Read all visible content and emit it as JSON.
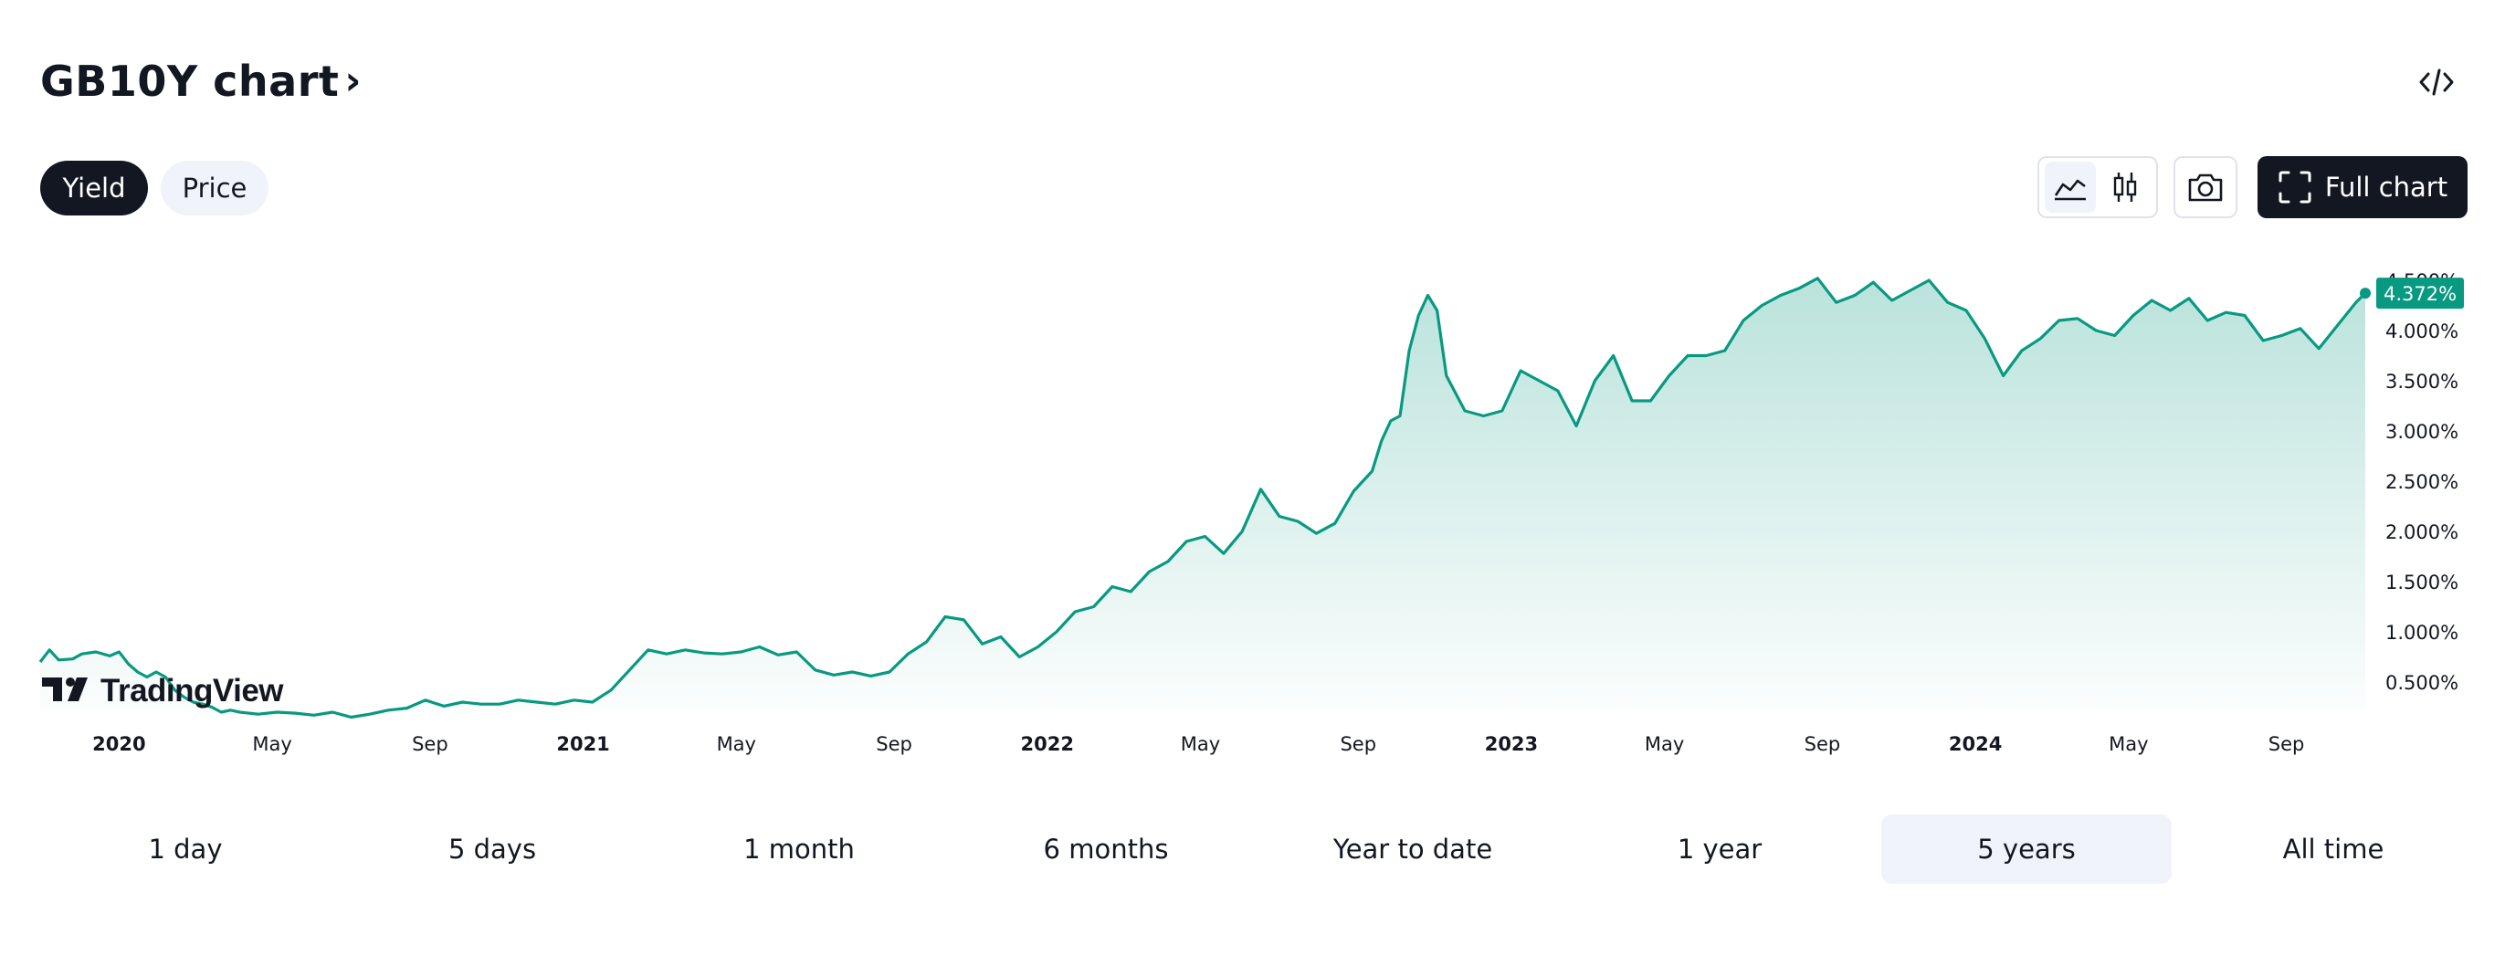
{
  "header": {
    "title": "GB10Y chart",
    "chevron": "›"
  },
  "tabs": {
    "yield_label": "Yield",
    "price_label": "Price",
    "active": "Yield"
  },
  "toolbar": {
    "full_chart_label": "Full chart",
    "chart_style_active": "area",
    "icons": [
      "embed-code-icon",
      "area-chart-icon",
      "candlestick-icon",
      "camera-icon",
      "fullscreen-icon"
    ]
  },
  "ranges": [
    "1 day",
    "5 days",
    "1 month",
    "6 months",
    "Year to date",
    "1 year",
    "5 years",
    "All time"
  ],
  "active_range": "5 years",
  "brand": {
    "name": "TradingView",
    "logo_text": "17"
  },
  "colors": {
    "line": "#089981",
    "badge": "#089981",
    "dark": "#131722",
    "muted_bg": "#f0f3fa"
  },
  "chart_data": {
    "type": "area",
    "y_unit": "%",
    "ylim": [
      0.0,
      4.75
    ],
    "y_ticks": [
      "0.500%",
      "1.000%",
      "1.500%",
      "2.000%",
      "2.500%",
      "3.000%",
      "3.500%",
      "4.000%",
      "4.500%"
    ],
    "y_tick_values": [
      0.5,
      1.0,
      1.5,
      2.0,
      2.5,
      3.0,
      3.5,
      4.0,
      4.5
    ],
    "x_range": [
      2019.83,
      2024.84
    ],
    "x_ticks": [
      {
        "label": "2020",
        "t": 2020.0,
        "bold": true
      },
      {
        "label": "May",
        "t": 2020.33,
        "bold": false
      },
      {
        "label": "Sep",
        "t": 2020.67,
        "bold": false
      },
      {
        "label": "2021",
        "t": 2021.0,
        "bold": true
      },
      {
        "label": "May",
        "t": 2021.33,
        "bold": false
      },
      {
        "label": "Sep",
        "t": 2021.67,
        "bold": false
      },
      {
        "label": "2022",
        "t": 2022.0,
        "bold": true
      },
      {
        "label": "May",
        "t": 2022.33,
        "bold": false
      },
      {
        "label": "Sep",
        "t": 2022.67,
        "bold": false
      },
      {
        "label": "2023",
        "t": 2023.0,
        "bold": true
      },
      {
        "label": "May",
        "t": 2023.33,
        "bold": false
      },
      {
        "label": "Sep",
        "t": 2023.67,
        "bold": false
      },
      {
        "label": "2024",
        "t": 2024.0,
        "bold": true
      },
      {
        "label": "May",
        "t": 2024.33,
        "bold": false
      },
      {
        "label": "Sep",
        "t": 2024.67,
        "bold": false
      }
    ],
    "last_value_label": "4.372%",
    "series": [
      {
        "x": [
          2019.83,
          2019.85,
          2019.87,
          2019.9,
          2019.92,
          2019.95,
          2019.98,
          2020.0,
          2020.02,
          2020.04,
          2020.06,
          2020.08,
          2020.1,
          2020.12,
          2020.14,
          2020.16,
          2020.18,
          2020.2,
          2020.22,
          2020.24,
          2020.26,
          2020.3,
          2020.34,
          2020.38,
          2020.42,
          2020.46,
          2020.5,
          2020.54,
          2020.58,
          2020.62,
          2020.66,
          2020.7,
          2020.74,
          2020.78,
          2020.82,
          2020.86,
          2020.9,
          2020.94,
          2020.98,
          2021.02,
          2021.06,
          2021.1,
          2021.14,
          2021.18,
          2021.22,
          2021.26,
          2021.3,
          2021.34,
          2021.38,
          2021.42,
          2021.46,
          2021.5,
          2021.54,
          2021.58,
          2021.62,
          2021.66,
          2021.7,
          2021.74,
          2021.78,
          2021.82,
          2021.86,
          2021.9,
          2021.94,
          2021.98,
          2022.02,
          2022.06,
          2022.1,
          2022.14,
          2022.18,
          2022.22,
          2022.26,
          2022.3,
          2022.34,
          2022.38,
          2022.42,
          2022.46,
          2022.5,
          2022.54,
          2022.58,
          2022.62,
          2022.66,
          2022.7,
          2022.72,
          2022.74,
          2022.76,
          2022.78,
          2022.8,
          2022.82,
          2022.84,
          2022.86,
          2022.9,
          2022.94,
          2022.98,
          2023.02,
          2023.06,
          2023.1,
          2023.14,
          2023.18,
          2023.22,
          2023.26,
          2023.3,
          2023.34,
          2023.38,
          2023.42,
          2023.46,
          2023.5,
          2023.54,
          2023.58,
          2023.62,
          2023.66,
          2023.7,
          2023.74,
          2023.78,
          2023.82,
          2023.86,
          2023.9,
          2023.94,
          2023.98,
          2024.02,
          2024.06,
          2024.1,
          2024.14,
          2024.18,
          2024.22,
          2024.26,
          2024.3,
          2024.34,
          2024.38,
          2024.42,
          2024.46,
          2024.5,
          2024.54,
          2024.58,
          2024.62,
          2024.66,
          2024.7,
          2024.74,
          2024.78,
          2024.82,
          2024.84
        ],
        "y": [
          0.7,
          0.82,
          0.72,
          0.73,
          0.78,
          0.8,
          0.76,
          0.8,
          0.68,
          0.6,
          0.55,
          0.6,
          0.55,
          0.42,
          0.35,
          0.3,
          0.28,
          0.25,
          0.2,
          0.22,
          0.2,
          0.18,
          0.2,
          0.19,
          0.17,
          0.2,
          0.15,
          0.18,
          0.22,
          0.24,
          0.32,
          0.26,
          0.3,
          0.28,
          0.28,
          0.32,
          0.3,
          0.28,
          0.32,
          0.3,
          0.42,
          0.62,
          0.82,
          0.78,
          0.82,
          0.79,
          0.78,
          0.8,
          0.85,
          0.77,
          0.8,
          0.62,
          0.57,
          0.6,
          0.56,
          0.6,
          0.78,
          0.9,
          1.15,
          1.12,
          0.88,
          0.95,
          0.75,
          0.85,
          1.0,
          1.2,
          1.25,
          1.45,
          1.4,
          1.6,
          1.7,
          1.9,
          1.95,
          1.78,
          2.0,
          2.42,
          2.15,
          2.1,
          1.98,
          2.08,
          2.4,
          2.6,
          2.9,
          3.1,
          3.15,
          3.8,
          4.15,
          4.35,
          4.2,
          3.55,
          3.2,
          3.15,
          3.2,
          3.6,
          3.5,
          3.4,
          3.05,
          3.5,
          3.75,
          3.3,
          3.3,
          3.55,
          3.75,
          3.75,
          3.8,
          4.1,
          4.25,
          4.35,
          4.42,
          4.52,
          4.28,
          4.35,
          4.48,
          4.3,
          4.4,
          4.5,
          4.28,
          4.2,
          3.92,
          3.55,
          3.8,
          3.92,
          4.1,
          4.12,
          4.0,
          3.95,
          4.15,
          4.3,
          4.2,
          4.32,
          4.1,
          4.18,
          4.15,
          3.9,
          3.95,
          4.02,
          3.82,
          4.05,
          4.28,
          4.372
        ]
      }
    ]
  }
}
